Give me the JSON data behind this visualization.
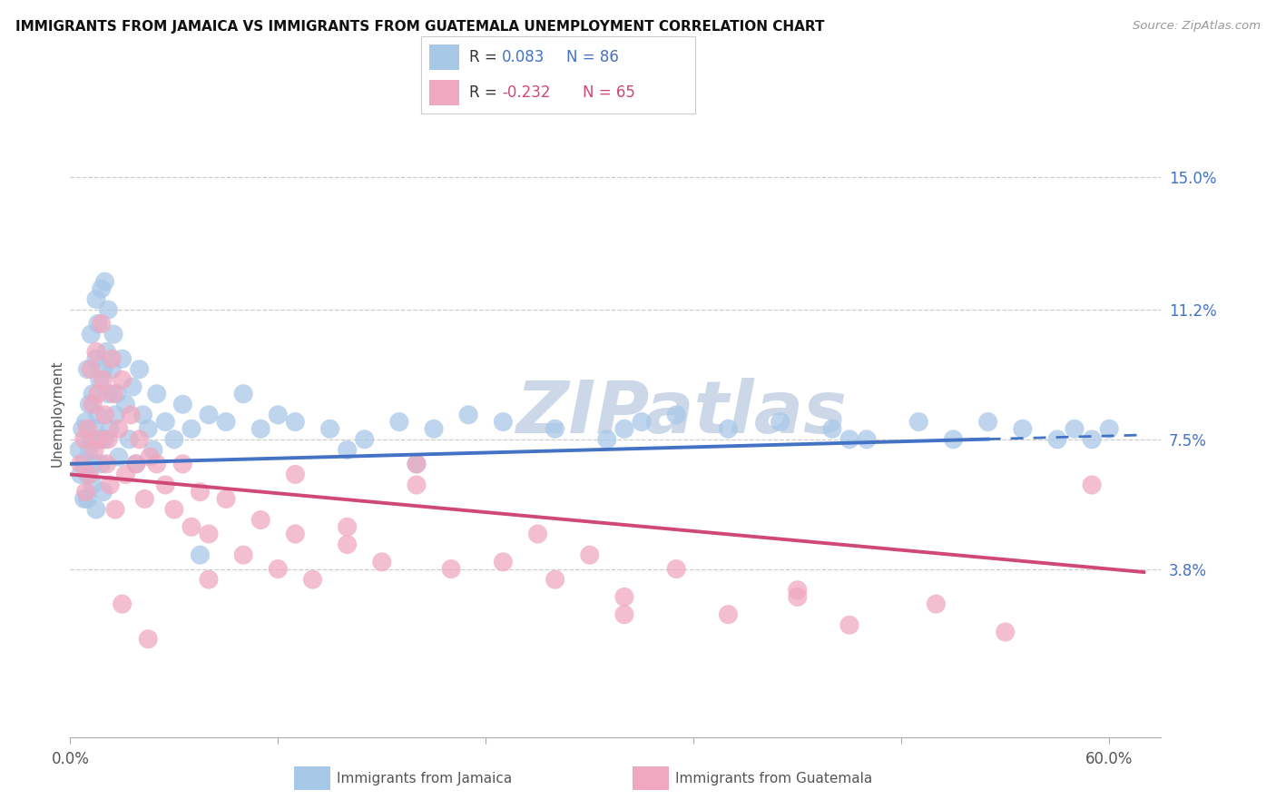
{
  "title": "IMMIGRANTS FROM JAMAICA VS IMMIGRANTS FROM GUATEMALA UNEMPLOYMENT CORRELATION CHART",
  "source": "Source: ZipAtlas.com",
  "ylabel": "Unemployment",
  "xlim": [
    0.0,
    0.63
  ],
  "ylim": [
    -0.01,
    0.175
  ],
  "ytick_values": [
    0.038,
    0.075,
    0.112,
    0.15
  ],
  "ytick_labels": [
    "3.8%",
    "7.5%",
    "11.2%",
    "15.0%"
  ],
  "xtick_positions": [
    0.0,
    0.12,
    0.24,
    0.36,
    0.48,
    0.6
  ],
  "xtick_labels": [
    "0.0%",
    "",
    "",
    "",
    "",
    "60.0%"
  ],
  "jamaica_color": "#a8c8e8",
  "guatemala_color": "#f0a8c0",
  "jamaica_line_color": "#4472c4",
  "guatemala_line_color": "#d04878",
  "jamaica_R": "0.083",
  "jamaica_N": "86",
  "guatemala_R": "-0.232",
  "guatemala_N": "65",
  "legend_label_jamaica": "Immigrants from Jamaica",
  "legend_label_guatemala": "Immigrants from Guatemala",
  "jamaica_line_x0": 0.0,
  "jamaica_line_y0": 0.068,
  "jamaica_line_x1": 0.6,
  "jamaica_line_y1": 0.076,
  "guatemala_line_x0": 0.0,
  "guatemala_line_y0": 0.065,
  "guatemala_line_x1": 0.6,
  "guatemala_line_y1": 0.038,
  "jamaica_scatter_x": [
    0.005,
    0.006,
    0.007,
    0.008,
    0.008,
    0.009,
    0.01,
    0.01,
    0.01,
    0.011,
    0.011,
    0.012,
    0.012,
    0.013,
    0.013,
    0.014,
    0.014,
    0.015,
    0.015,
    0.015,
    0.016,
    0.016,
    0.017,
    0.017,
    0.018,
    0.018,
    0.019,
    0.019,
    0.02,
    0.02,
    0.021,
    0.022,
    0.022,
    0.023,
    0.024,
    0.025,
    0.026,
    0.027,
    0.028,
    0.03,
    0.032,
    0.034,
    0.036,
    0.038,
    0.04,
    0.042,
    0.045,
    0.048,
    0.05,
    0.055,
    0.06,
    0.065,
    0.07,
    0.08,
    0.09,
    0.1,
    0.11,
    0.12,
    0.13,
    0.15,
    0.17,
    0.19,
    0.21,
    0.23,
    0.25,
    0.28,
    0.31,
    0.33,
    0.35,
    0.38,
    0.41,
    0.44,
    0.46,
    0.49,
    0.51,
    0.53,
    0.55,
    0.57,
    0.58,
    0.59,
    0.6,
    0.45,
    0.32,
    0.2,
    0.075,
    0.16
  ],
  "jamaica_scatter_y": [
    0.072,
    0.065,
    0.078,
    0.068,
    0.058,
    0.08,
    0.095,
    0.065,
    0.058,
    0.085,
    0.072,
    0.105,
    0.075,
    0.088,
    0.062,
    0.078,
    0.068,
    0.115,
    0.098,
    0.055,
    0.082,
    0.108,
    0.075,
    0.092,
    0.118,
    0.068,
    0.095,
    0.06,
    0.12,
    0.075,
    0.1,
    0.112,
    0.088,
    0.078,
    0.095,
    0.105,
    0.082,
    0.088,
    0.07,
    0.098,
    0.085,
    0.075,
    0.09,
    0.068,
    0.095,
    0.082,
    0.078,
    0.072,
    0.088,
    0.08,
    0.075,
    0.085,
    0.078,
    0.082,
    0.08,
    0.088,
    0.078,
    0.082,
    0.08,
    0.078,
    0.075,
    0.08,
    0.078,
    0.082,
    0.08,
    0.078,
    0.075,
    0.08,
    0.082,
    0.078,
    0.08,
    0.078,
    0.075,
    0.08,
    0.075,
    0.08,
    0.078,
    0.075,
    0.078,
    0.075,
    0.078,
    0.075,
    0.078,
    0.068,
    0.042,
    0.072
  ],
  "guatemala_scatter_x": [
    0.006,
    0.008,
    0.009,
    0.01,
    0.011,
    0.012,
    0.013,
    0.014,
    0.015,
    0.016,
    0.017,
    0.018,
    0.019,
    0.02,
    0.021,
    0.022,
    0.023,
    0.024,
    0.025,
    0.026,
    0.028,
    0.03,
    0.032,
    0.035,
    0.038,
    0.04,
    0.043,
    0.046,
    0.05,
    0.055,
    0.06,
    0.065,
    0.07,
    0.075,
    0.08,
    0.09,
    0.1,
    0.11,
    0.12,
    0.13,
    0.14,
    0.16,
    0.18,
    0.2,
    0.22,
    0.25,
    0.28,
    0.3,
    0.32,
    0.35,
    0.38,
    0.42,
    0.45,
    0.5,
    0.54,
    0.59,
    0.08,
    0.03,
    0.045,
    0.13,
    0.27,
    0.2,
    0.16,
    0.32,
    0.42
  ],
  "guatemala_scatter_y": [
    0.068,
    0.075,
    0.06,
    0.078,
    0.065,
    0.095,
    0.085,
    0.072,
    0.1,
    0.088,
    0.075,
    0.108,
    0.092,
    0.082,
    0.068,
    0.075,
    0.062,
    0.098,
    0.088,
    0.055,
    0.078,
    0.092,
    0.065,
    0.082,
    0.068,
    0.075,
    0.058,
    0.07,
    0.068,
    0.062,
    0.055,
    0.068,
    0.05,
    0.06,
    0.048,
    0.058,
    0.042,
    0.052,
    0.038,
    0.048,
    0.035,
    0.045,
    0.04,
    0.062,
    0.038,
    0.04,
    0.035,
    0.042,
    0.03,
    0.038,
    0.025,
    0.03,
    0.022,
    0.028,
    0.02,
    0.062,
    0.035,
    0.028,
    0.018,
    0.065,
    0.048,
    0.068,
    0.05,
    0.025,
    0.032
  ],
  "background_color": "#ffffff",
  "grid_color": "#cccccc",
  "watermark_text": "ZIPatlas",
  "watermark_color": "#ccd8e8"
}
